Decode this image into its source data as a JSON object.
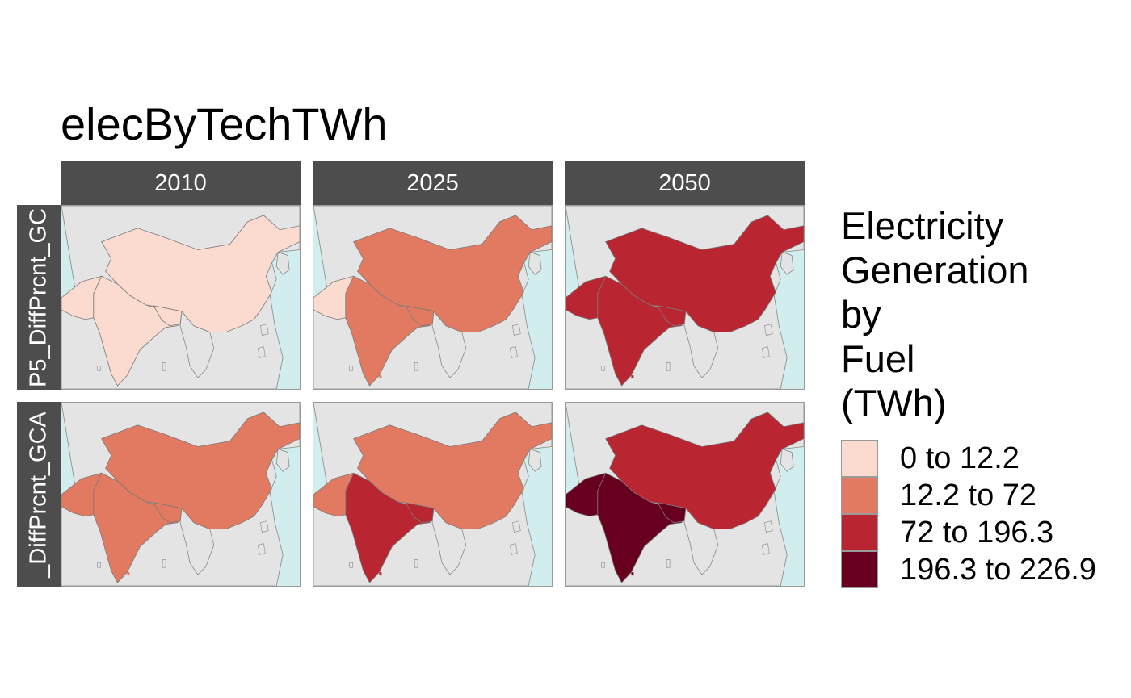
{
  "title": "elecByTechTWh",
  "columns": [
    "2010",
    "2025",
    "2050"
  ],
  "rows": [
    "P5_DiffPrcnt_GC",
    "_DiffPrcnt_GCA"
  ],
  "legend": {
    "title_lines": [
      "Electricity",
      "Generation",
      "by",
      "Fuel",
      "(TWh)"
    ],
    "classes": [
      {
        "label": "0 to 12.2",
        "color": "#fbdad0"
      },
      {
        "label": "12.2 to 72",
        "color": "#e27a62"
      },
      {
        "label": "72 to 196.3",
        "color": "#ba2532"
      },
      {
        "label": "196.3 to 226.9",
        "color": "#67001f"
      }
    ]
  },
  "colors": {
    "ocean": "#d1eded",
    "land": "#e4e4e4",
    "border": "#888888",
    "strip": "#4d4d4d"
  },
  "map_data": {
    "regions": [
      "China",
      "India",
      "Pakistan",
      "Bangladesh"
    ],
    "class_index": [
      [
        [
          0,
          0,
          0,
          0
        ],
        [
          1,
          1,
          0,
          1
        ],
        [
          2,
          2,
          2,
          2
        ]
      ],
      [
        [
          1,
          1,
          1,
          1
        ],
        [
          1,
          2,
          1,
          2
        ],
        [
          2,
          3,
          3,
          3
        ]
      ]
    ]
  }
}
